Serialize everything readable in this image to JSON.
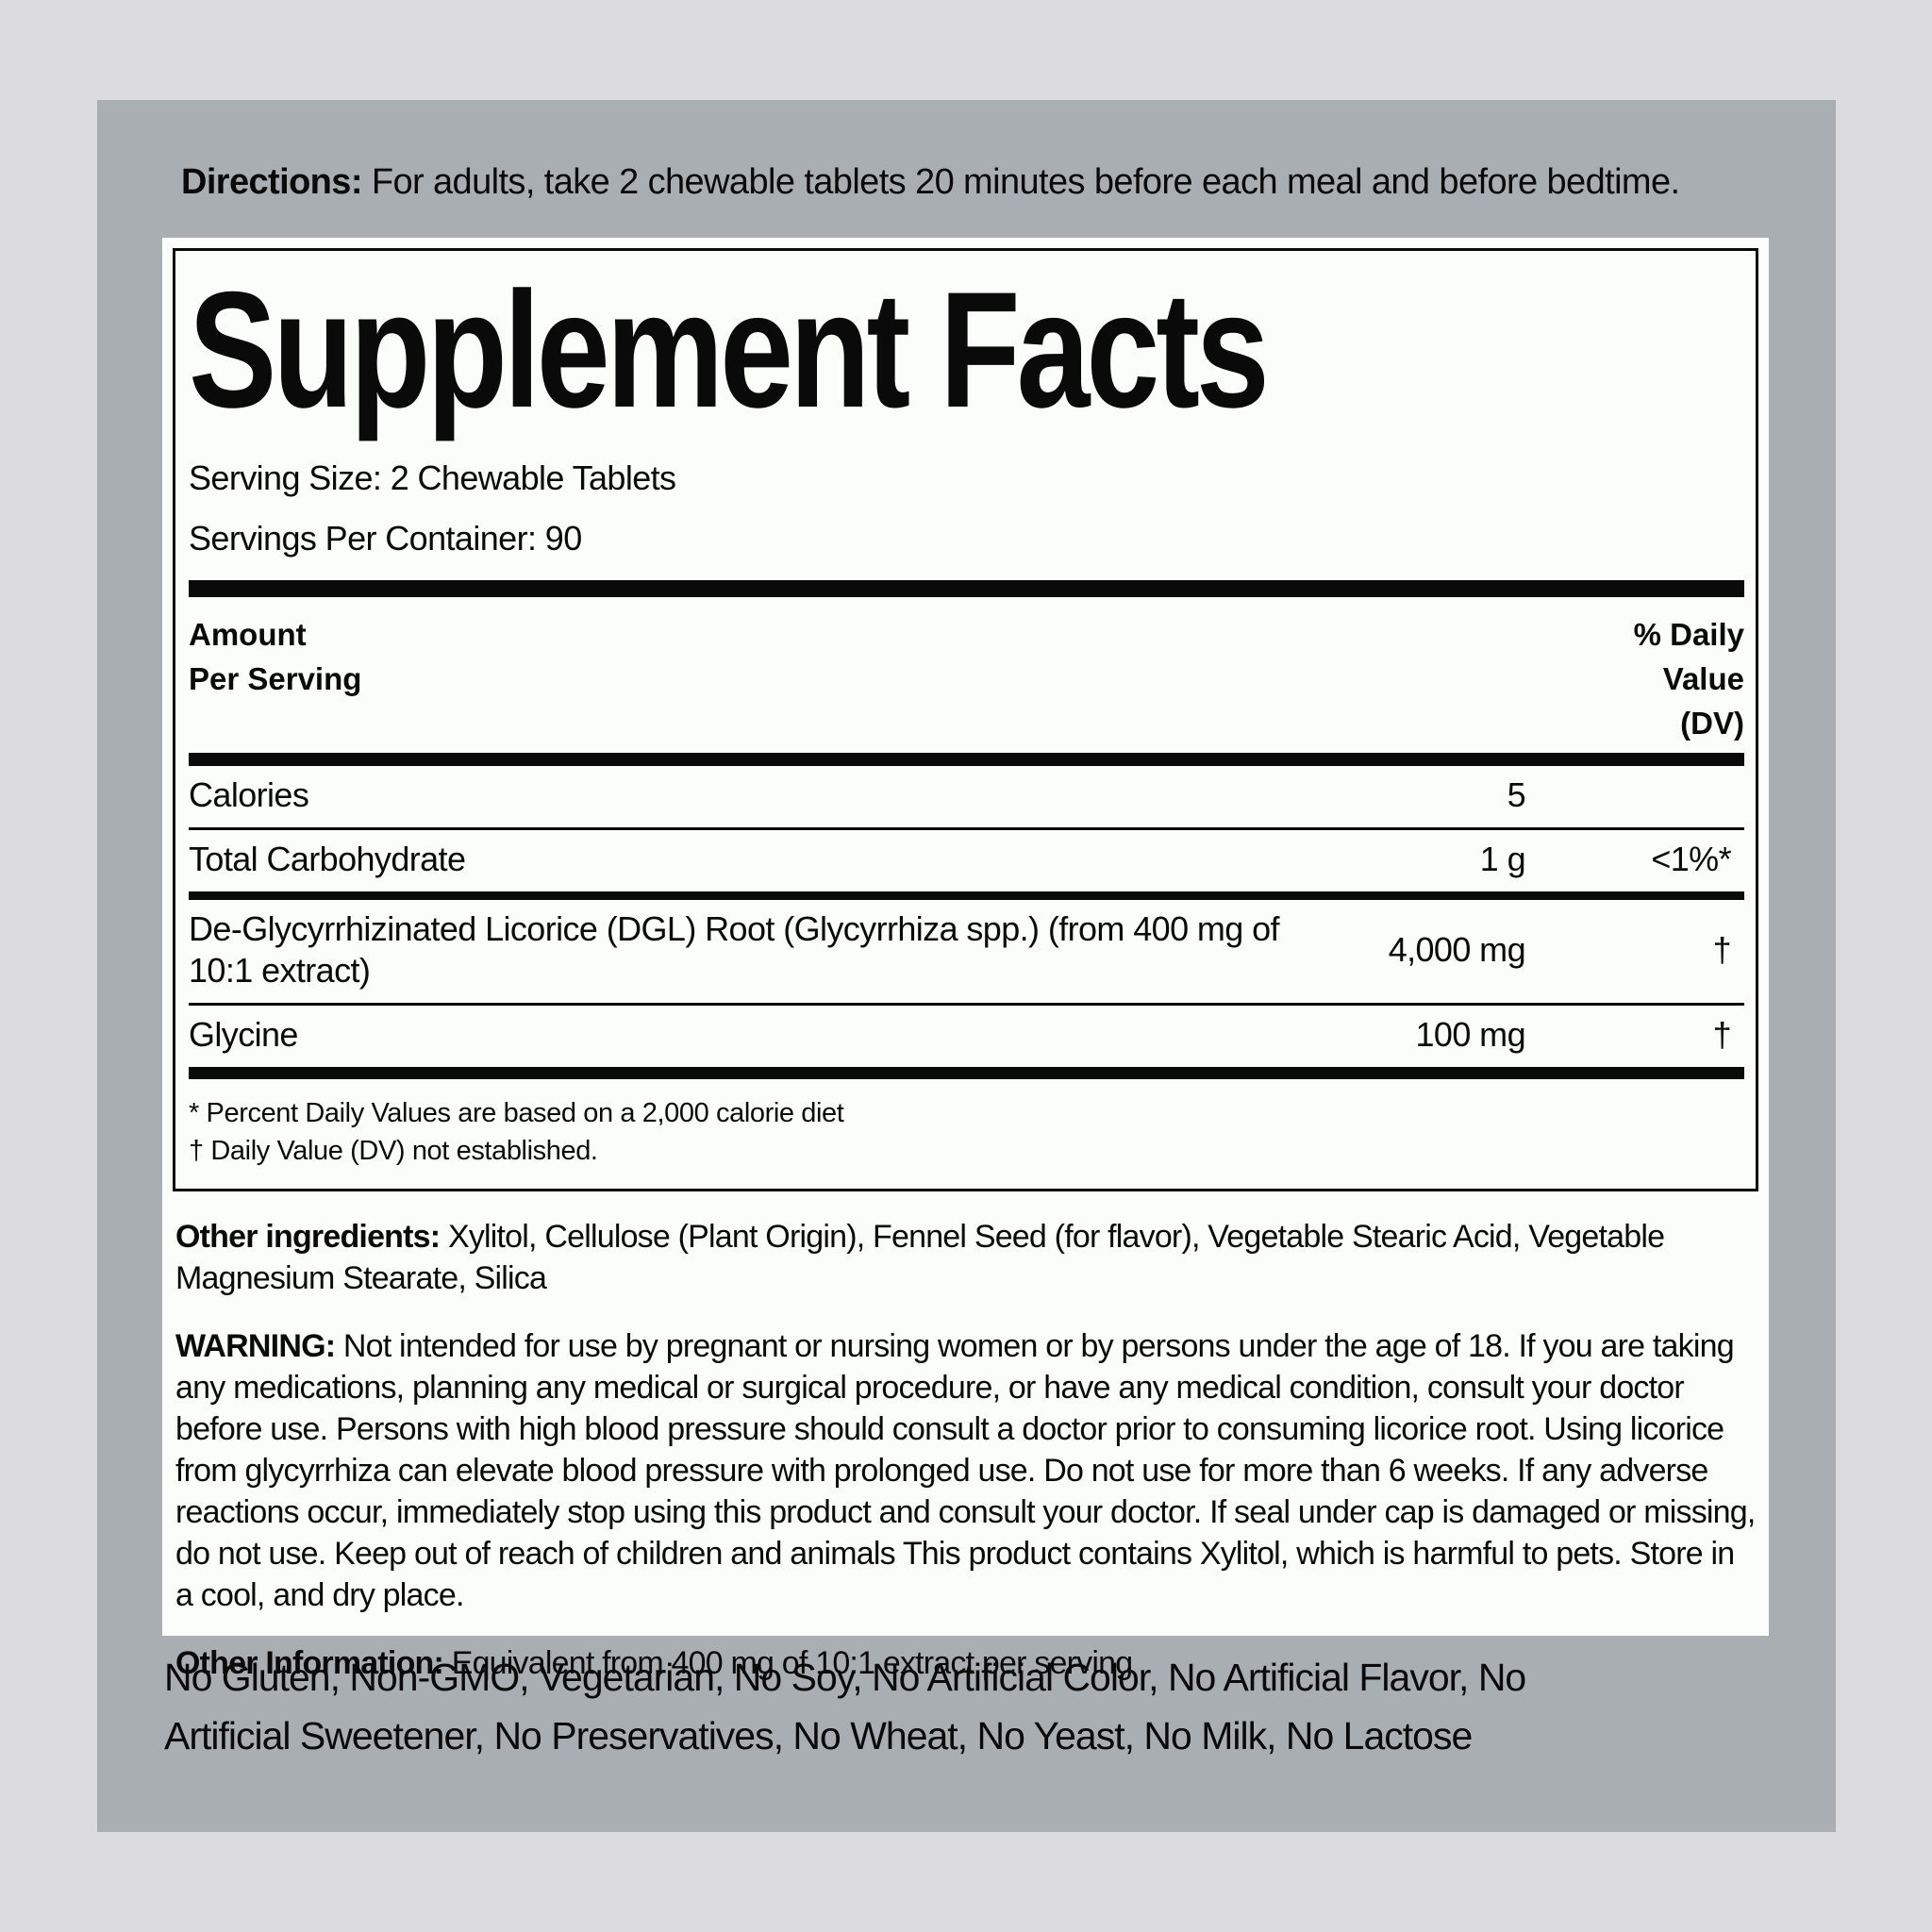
{
  "directions": {
    "label": "Directions:",
    "text": "For adults, take 2 chewable tablets 20 minutes before each meal and before bedtime."
  },
  "facts": {
    "title": "Supplement Facts",
    "serving_size": "Serving Size: 2 Chewable Tablets",
    "servings_per_container": "Servings Per Container: 90",
    "header": {
      "left_lines": [
        "Amount",
        "Per Serving"
      ],
      "right_lines": [
        "% Daily",
        "Value",
        "(DV)"
      ]
    },
    "rows": [
      {
        "name": "Calories",
        "amount": "5",
        "dv": ""
      },
      {
        "name": "Total Carbohydrate",
        "amount": "1 g",
        "dv": "<1%*"
      },
      {
        "name": "De-Glycyrrhizinated Licorice (DGL) Root (Glycyrrhiza spp.) (from 400 mg of 10:1 extract)",
        "amount": "4,000 mg",
        "dv": "†"
      },
      {
        "name": "Glycine",
        "amount": "100 mg",
        "dv": "†"
      }
    ],
    "footnotes": [
      "* Percent Daily Values are based on a 2,000 calorie diet",
      "† Daily Value (DV) not established."
    ]
  },
  "sections": {
    "other_ingredients": {
      "label": "Other ingredients:",
      "text": "Xylitol, Cellulose (Plant Origin), Fennel Seed (for flavor), Vegetable Stearic Acid, Vegetable Magnesium Stearate, Silica"
    },
    "warning": {
      "label": "WARNING:",
      "text": "Not intended for use by pregnant or nursing women or by persons under the age of 18. If you are taking any medications, planning any medical or surgical procedure, or have any medical condition, consult your doctor before use. Persons with high blood pressure should consult a doctor prior to consuming licorice root. Using licorice from glycyrrhiza can elevate blood pressure with prolonged use. Do not use for more than 6 weeks. If any adverse reactions occur, immediately stop using this product and consult your doctor. If seal under cap is damaged or missing, do not use. Keep out of reach of children and animals This product contains Xylitol, which is harmful to pets. Store in a cool, and dry place."
    },
    "other_information": {
      "label": "Other Information:",
      "text": "Equivalent from 400 mg of 10:1 extract per serving"
    }
  },
  "tagline": "No Gluten, Non-GMO, Vegetarian, No Soy, No Artificial Color, No Artificial Flavor, No Artificial Sweetener, No Preservatives, No Wheat, No Yeast, No Milk, No Lactose",
  "colors": {
    "outer_background": "#dcdbde",
    "panel_background": "#a9aeb2",
    "sheet_background": "#fbfdfa",
    "text": "#0a0a0a"
  }
}
